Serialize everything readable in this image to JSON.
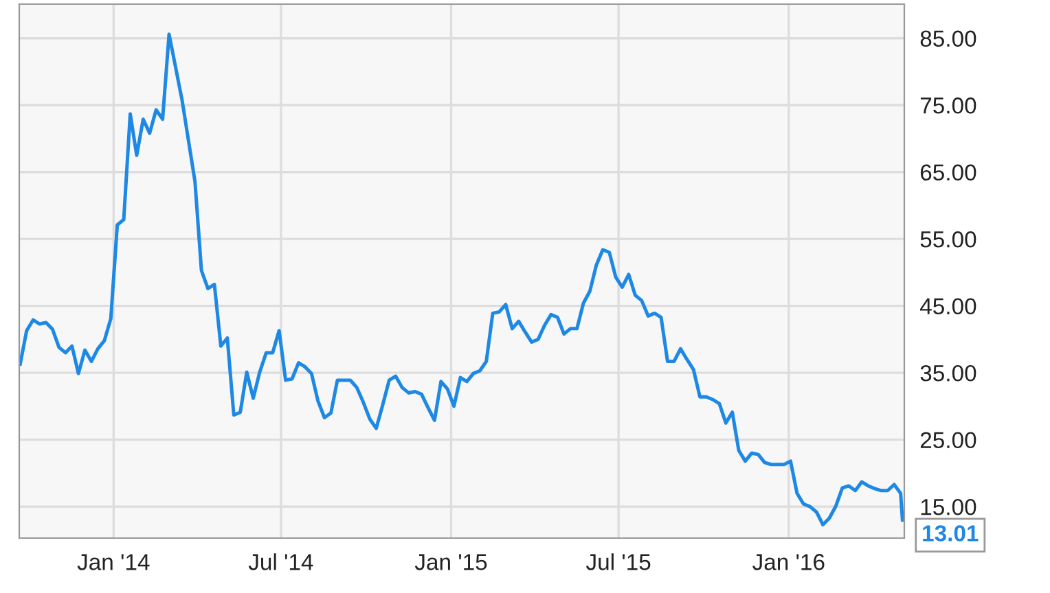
{
  "chart_data": {
    "type": "line",
    "x": [
      "2013-09-22",
      "2013-09-29",
      "2013-10-06",
      "2013-10-13",
      "2013-10-20",
      "2013-10-27",
      "2013-11-03",
      "2013-11-10",
      "2013-11-17",
      "2013-11-24",
      "2013-12-01",
      "2013-12-08",
      "2013-12-15",
      "2013-12-22",
      "2013-12-29",
      "2014-01-05",
      "2014-01-12",
      "2014-01-19",
      "2014-01-26",
      "2014-02-02",
      "2014-02-09",
      "2014-02-16",
      "2014-02-23",
      "2014-03-02",
      "2014-03-16",
      "2014-03-30",
      "2014-04-06",
      "2014-04-13",
      "2014-04-20",
      "2014-04-27",
      "2014-05-04",
      "2014-05-11",
      "2014-05-18",
      "2014-05-25",
      "2014-06-01",
      "2014-06-08",
      "2014-06-15",
      "2014-06-22",
      "2014-06-29",
      "2014-07-06",
      "2014-07-13",
      "2014-07-20",
      "2014-07-27",
      "2014-08-03",
      "2014-08-10",
      "2014-08-17",
      "2014-08-24",
      "2014-08-31",
      "2014-09-14",
      "2014-09-21",
      "2014-09-28",
      "2014-10-05",
      "2014-10-12",
      "2014-10-19",
      "2014-10-26",
      "2014-11-02",
      "2014-11-09",
      "2014-11-16",
      "2014-11-23",
      "2014-11-30",
      "2014-12-07",
      "2014-12-14",
      "2014-12-21",
      "2014-12-28",
      "2015-01-04",
      "2015-01-11",
      "2015-01-18",
      "2015-01-25",
      "2015-02-01",
      "2015-02-08",
      "2015-02-15",
      "2015-02-22",
      "2015-03-01",
      "2015-03-08",
      "2015-03-15",
      "2015-03-22",
      "2015-03-29",
      "2015-04-05",
      "2015-04-12",
      "2015-04-19",
      "2015-04-26",
      "2015-05-03",
      "2015-05-10",
      "2015-05-17",
      "2015-05-24",
      "2015-05-31",
      "2015-06-07",
      "2015-06-14",
      "2015-06-21",
      "2015-06-28",
      "2015-07-05",
      "2015-07-12",
      "2015-07-19",
      "2015-07-26",
      "2015-08-02",
      "2015-08-09",
      "2015-08-16",
      "2015-08-23",
      "2015-08-30",
      "2015-09-06",
      "2015-09-13",
      "2015-09-20",
      "2015-09-27",
      "2015-10-04",
      "2015-10-11",
      "2015-10-18",
      "2015-10-25",
      "2015-11-01",
      "2015-11-08",
      "2015-11-15",
      "2015-11-22",
      "2015-11-29",
      "2015-12-06",
      "2015-12-13",
      "2015-12-20",
      "2015-12-27",
      "2016-01-03",
      "2016-01-10",
      "2016-01-17",
      "2016-01-24",
      "2016-01-31",
      "2016-02-07",
      "2016-02-14",
      "2016-02-21",
      "2016-02-28",
      "2016-03-06",
      "2016-03-13",
      "2016-03-20",
      "2016-03-27",
      "2016-04-03",
      "2016-04-10",
      "2016-04-17",
      "2016-04-24",
      "2016-05-01",
      "2016-05-03"
    ],
    "series": [
      {
        "color": "#1e88e5",
        "values": [
          36.3,
          41.3,
          42.9,
          42.3,
          42.5,
          41.5,
          38.8,
          38.0,
          39.0,
          34.9,
          38.4,
          36.7,
          38.6,
          39.8,
          43.1,
          57.1,
          57.9,
          73.7,
          67.5,
          72.9,
          70.8,
          74.3,
          72.9,
          85.6,
          75.8,
          63.6,
          50.3,
          47.6,
          48.2,
          39.0,
          40.2,
          28.7,
          29.1,
          35.1,
          31.2,
          35.1,
          38.0,
          38.0,
          41.3,
          33.9,
          34.1,
          36.5,
          35.9,
          34.9,
          30.8,
          28.3,
          29.0,
          33.9,
          33.9,
          32.8,
          30.6,
          28.1,
          26.7,
          30.2,
          33.9,
          34.5,
          32.8,
          32.0,
          32.2,
          31.8,
          29.8,
          27.9,
          33.7,
          32.6,
          30.0,
          34.3,
          33.7,
          34.9,
          35.3,
          36.7,
          43.9,
          44.1,
          45.2,
          41.6,
          42.7,
          41.1,
          39.6,
          40.0,
          42.1,
          43.7,
          43.3,
          40.8,
          41.6,
          41.6,
          45.4,
          47.2,
          51.1,
          53.4,
          53.0,
          49.3,
          47.8,
          49.7,
          46.6,
          45.8,
          43.5,
          43.9,
          43.3,
          36.7,
          36.7,
          38.6,
          37.0,
          35.5,
          31.4,
          31.4,
          31.0,
          30.4,
          27.5,
          29.1,
          23.4,
          21.8,
          23.0,
          22.8,
          21.6,
          21.3,
          21.3,
          21.3,
          21.8,
          17.0,
          15.4,
          15.0,
          14.2,
          12.3,
          13.3,
          15.1,
          17.8,
          18.1,
          17.4,
          18.7,
          18.1,
          17.7,
          17.4,
          17.4,
          18.3,
          17.0,
          13.01
        ]
      }
    ],
    "xlim": [
      "2013-09-21",
      "2016-05-05"
    ],
    "xticks": [
      {
        "value": "2014-01-01",
        "label": "Jan '14"
      },
      {
        "value": "2014-07-01",
        "label": "Jul '14"
      },
      {
        "value": "2015-01-01",
        "label": "Jan '15"
      },
      {
        "value": "2015-07-01",
        "label": "Jul '15"
      },
      {
        "value": "2016-01-01",
        "label": "Jan '16"
      }
    ],
    "ylim": [
      10.3,
      90.1
    ],
    "yticks": [
      {
        "value": 15,
        "label": "15.00"
      },
      {
        "value": 25,
        "label": "25.00"
      },
      {
        "value": 35,
        "label": "35.00"
      },
      {
        "value": 45,
        "label": "45.00"
      },
      {
        "value": 55,
        "label": "55.00"
      },
      {
        "value": 65,
        "label": "65.00"
      },
      {
        "value": 75,
        "label": "75.00"
      },
      {
        "value": 85,
        "label": "85.00"
      }
    ],
    "annotations": [
      {
        "text": "13.01",
        "x": "2016-05-03",
        "y": 13.01
      }
    ],
    "grid": true,
    "marker": "none",
    "line_style": "solid"
  }
}
